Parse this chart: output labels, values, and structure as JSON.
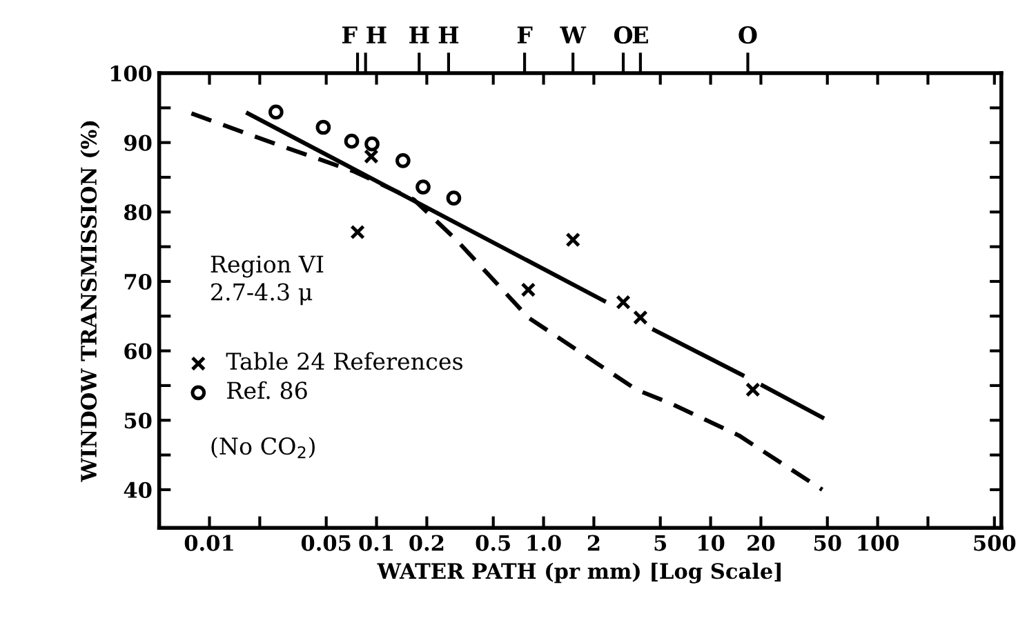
{
  "chart_data": {
    "type": "line",
    "xlabel": "WATER PATH (pr mm) [Log Scale]",
    "ylabel": "WINDOW TRANSMISSION (%)",
    "log": "x",
    "xlim": [
      0.005,
      550
    ],
    "xticks": [
      0.01,
      {
        "value": 0.02,
        "label": null
      },
      0.05,
      0.1,
      0.2,
      0.5,
      {
        "value": 1,
        "label": "1.0"
      },
      2,
      5,
      10,
      20,
      50,
      100,
      {
        "value": 200,
        "label": null
      },
      500
    ],
    "ylim": [
      34.5,
      100
    ],
    "yticks": [
      40,
      {
        "value": 45,
        "label": null
      },
      50,
      {
        "value": 55,
        "label": null
      },
      60,
      {
        "value": 65,
        "label": null
      },
      70,
      {
        "value": 75,
        "label": null
      },
      80,
      {
        "value": 85,
        "label": null
      },
      90,
      {
        "value": 95,
        "label": null
      },
      100
    ],
    "grid": false,
    "legend": "left",
    "annotations": [
      "Region VI\n2.7-4.3 μ",
      "(No CO$_{2}$)"
    ],
    "ref_lines": [
      {
        "axis": "x",
        "value": 0.077,
        "label": "F"
      },
      {
        "axis": "x",
        "value": 0.086,
        "label": "H"
      },
      {
        "axis": "x",
        "value": 0.18,
        "label": "H"
      },
      {
        "axis": "x",
        "value": 0.27,
        "label": "H"
      },
      {
        "axis": "x",
        "value": 0.77,
        "label": "F"
      },
      {
        "axis": "x",
        "value": 1.5,
        "label": "W"
      },
      {
        "axis": "x",
        "value": 3.0,
        "label": "O"
      },
      {
        "axis": "x",
        "value": 3.8,
        "label": "E"
      },
      {
        "axis": "x",
        "value": 16.7,
        "label": "O"
      }
    ],
    "series": [
      {
        "type": "line",
        "color": "#000000",
        "line_style": "solid",
        "marker": "none",
        "x": [
          0.017,
          2.3,
          3.3,
          4.6,
          15.5,
          17.9,
          20.5,
          46.6
        ],
        "values": [
          94.2,
          67.2,
          null,
          63,
          56.5,
          null,
          55,
          50.4
        ]
      },
      {
        "type": "line",
        "color": "#000000",
        "line_style": "dashed",
        "marker": "none",
        "x": [
          0.0078,
          0.0236,
          0.074,
          0.167,
          0.3,
          0.81,
          3.6,
          5.8,
          14.8,
          46.6
        ],
        "values": [
          94.2,
          90,
          85.8,
          81.8,
          76,
          64.8,
          54.4,
          52.4,
          47.8,
          40
        ]
      },
      {
        "type": "scatter",
        "name": "Table 24 References",
        "color": "#000000",
        "marker": "cross",
        "x": [
          0.077,
          0.093,
          0.81,
          1.5,
          3.0,
          3.8,
          17.9
        ],
        "values": [
          77.1,
          88,
          68.8,
          76,
          67,
          64.8,
          54.4
        ]
      },
      {
        "type": "scatter",
        "name": "Ref. 86",
        "color": "#000000",
        "marker": "circle",
        "x": [
          0.025,
          0.048,
          0.071,
          0.094,
          0.144,
          0.19,
          0.29
        ],
        "values": [
          94.4,
          92.2,
          90.2,
          89.8,
          87.4,
          83.6,
          82
        ]
      }
    ]
  }
}
